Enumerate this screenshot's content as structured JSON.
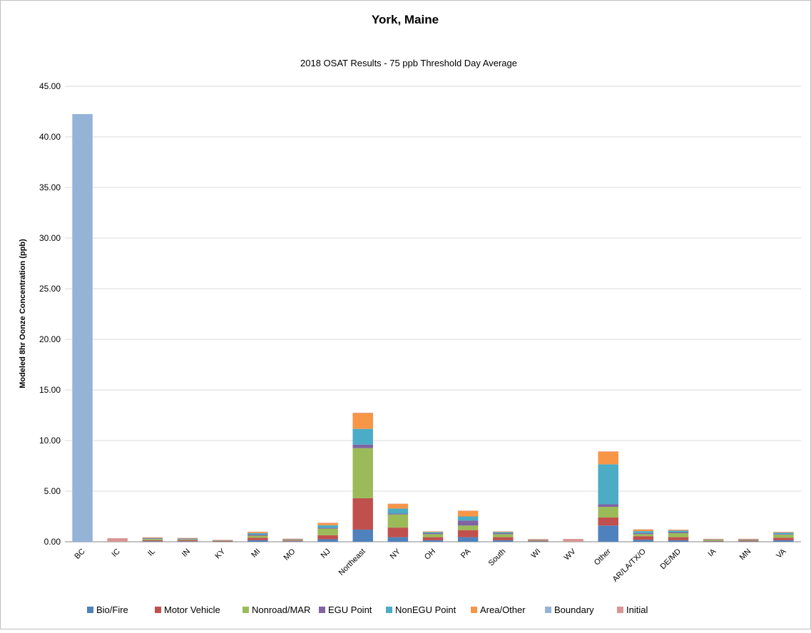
{
  "chart_data": {
    "type": "bar",
    "stacked": true,
    "title": "York, Maine",
    "subtitle": "2018 OSAT Results - 75 ppb Threshold Day Average",
    "xlabel": "",
    "ylabel": "Modeled 8hr Oonze Concentration (ppb)",
    "ylim": [
      0,
      45
    ],
    "yticks": [
      "0.00",
      "5.00",
      "10.00",
      "15.00",
      "20.00",
      "25.00",
      "30.00",
      "35.00",
      "40.00",
      "45.00"
    ],
    "grid": true,
    "legend_position": "bottom",
    "categories": [
      "BC",
      "IC",
      "IL",
      "IN",
      "KY",
      "MI",
      "MO",
      "NJ",
      "Northeast",
      "NY",
      "OH",
      "PA",
      "South",
      "WI",
      "WV",
      "Other",
      "AR/LA/TX/O",
      "DE/MD",
      "IA",
      "MN",
      "VA"
    ],
    "series": [
      {
        "name": "Bio/Fire",
        "color": "#4F81BD",
        "values": [
          0,
          0,
          0.05,
          0.05,
          0.02,
          0.15,
          0.05,
          0.25,
          1.2,
          0.45,
          0.15,
          0.45,
          0.15,
          0.04,
          0,
          1.6,
          0.2,
          0.15,
          0.03,
          0.04,
          0.15
        ]
      },
      {
        "name": "Motor Vehicle",
        "color": "#C0504D",
        "values": [
          0,
          0,
          0.1,
          0.1,
          0.05,
          0.25,
          0.07,
          0.4,
          3.1,
          0.95,
          0.3,
          0.7,
          0.3,
          0.07,
          0,
          0.8,
          0.35,
          0.3,
          0.05,
          0.07,
          0.25
        ]
      },
      {
        "name": "Nonroad/MAR",
        "color": "#9BBB59",
        "values": [
          0,
          0,
          0.12,
          0.08,
          0.03,
          0.2,
          0.06,
          0.65,
          4.95,
          1.3,
          0.3,
          0.45,
          0.3,
          0.05,
          0,
          1.05,
          0.2,
          0.4,
          0.12,
          0.06,
          0.3
        ]
      },
      {
        "name": "EGU Point",
        "color": "#8064A2",
        "values": [
          0,
          0,
          0.05,
          0.05,
          0.03,
          0.1,
          0.04,
          0.08,
          0.35,
          0.08,
          0.1,
          0.5,
          0.1,
          0.04,
          0,
          0.25,
          0.1,
          0.1,
          0.02,
          0.04,
          0.05
        ]
      },
      {
        "name": "NonEGU Point",
        "color": "#4BACC6",
        "values": [
          0,
          0,
          0.05,
          0.05,
          0.02,
          0.15,
          0.04,
          0.25,
          1.55,
          0.5,
          0.1,
          0.4,
          0.1,
          0.03,
          0,
          3.95,
          0.2,
          0.15,
          0.03,
          0.04,
          0.15
        ]
      },
      {
        "name": "Area/Other",
        "color": "#F79646",
        "values": [
          0,
          0,
          0.05,
          0.02,
          0.01,
          0.12,
          0.02,
          0.22,
          1.55,
          0.45,
          0.05,
          0.55,
          0.05,
          0.01,
          0,
          1.25,
          0.15,
          0.07,
          0.01,
          0.01,
          0.05
        ]
      },
      {
        "name": "Boundary",
        "color": "#95B3D7",
        "values": [
          42.25,
          0,
          0,
          0,
          0,
          0,
          0,
          0,
          0,
          0,
          0,
          0,
          0,
          0,
          0,
          0,
          0,
          0,
          0,
          0,
          0
        ]
      },
      {
        "name": "Initial",
        "color": "#D99694",
        "values": [
          0,
          0.35,
          0.03,
          0.03,
          0.03,
          0.03,
          0.03,
          0.03,
          0.05,
          0.03,
          0.03,
          0.03,
          0.03,
          0.03,
          0.28,
          0.03,
          0.03,
          0.03,
          0.03,
          0.03,
          0.03
        ]
      }
    ]
  }
}
